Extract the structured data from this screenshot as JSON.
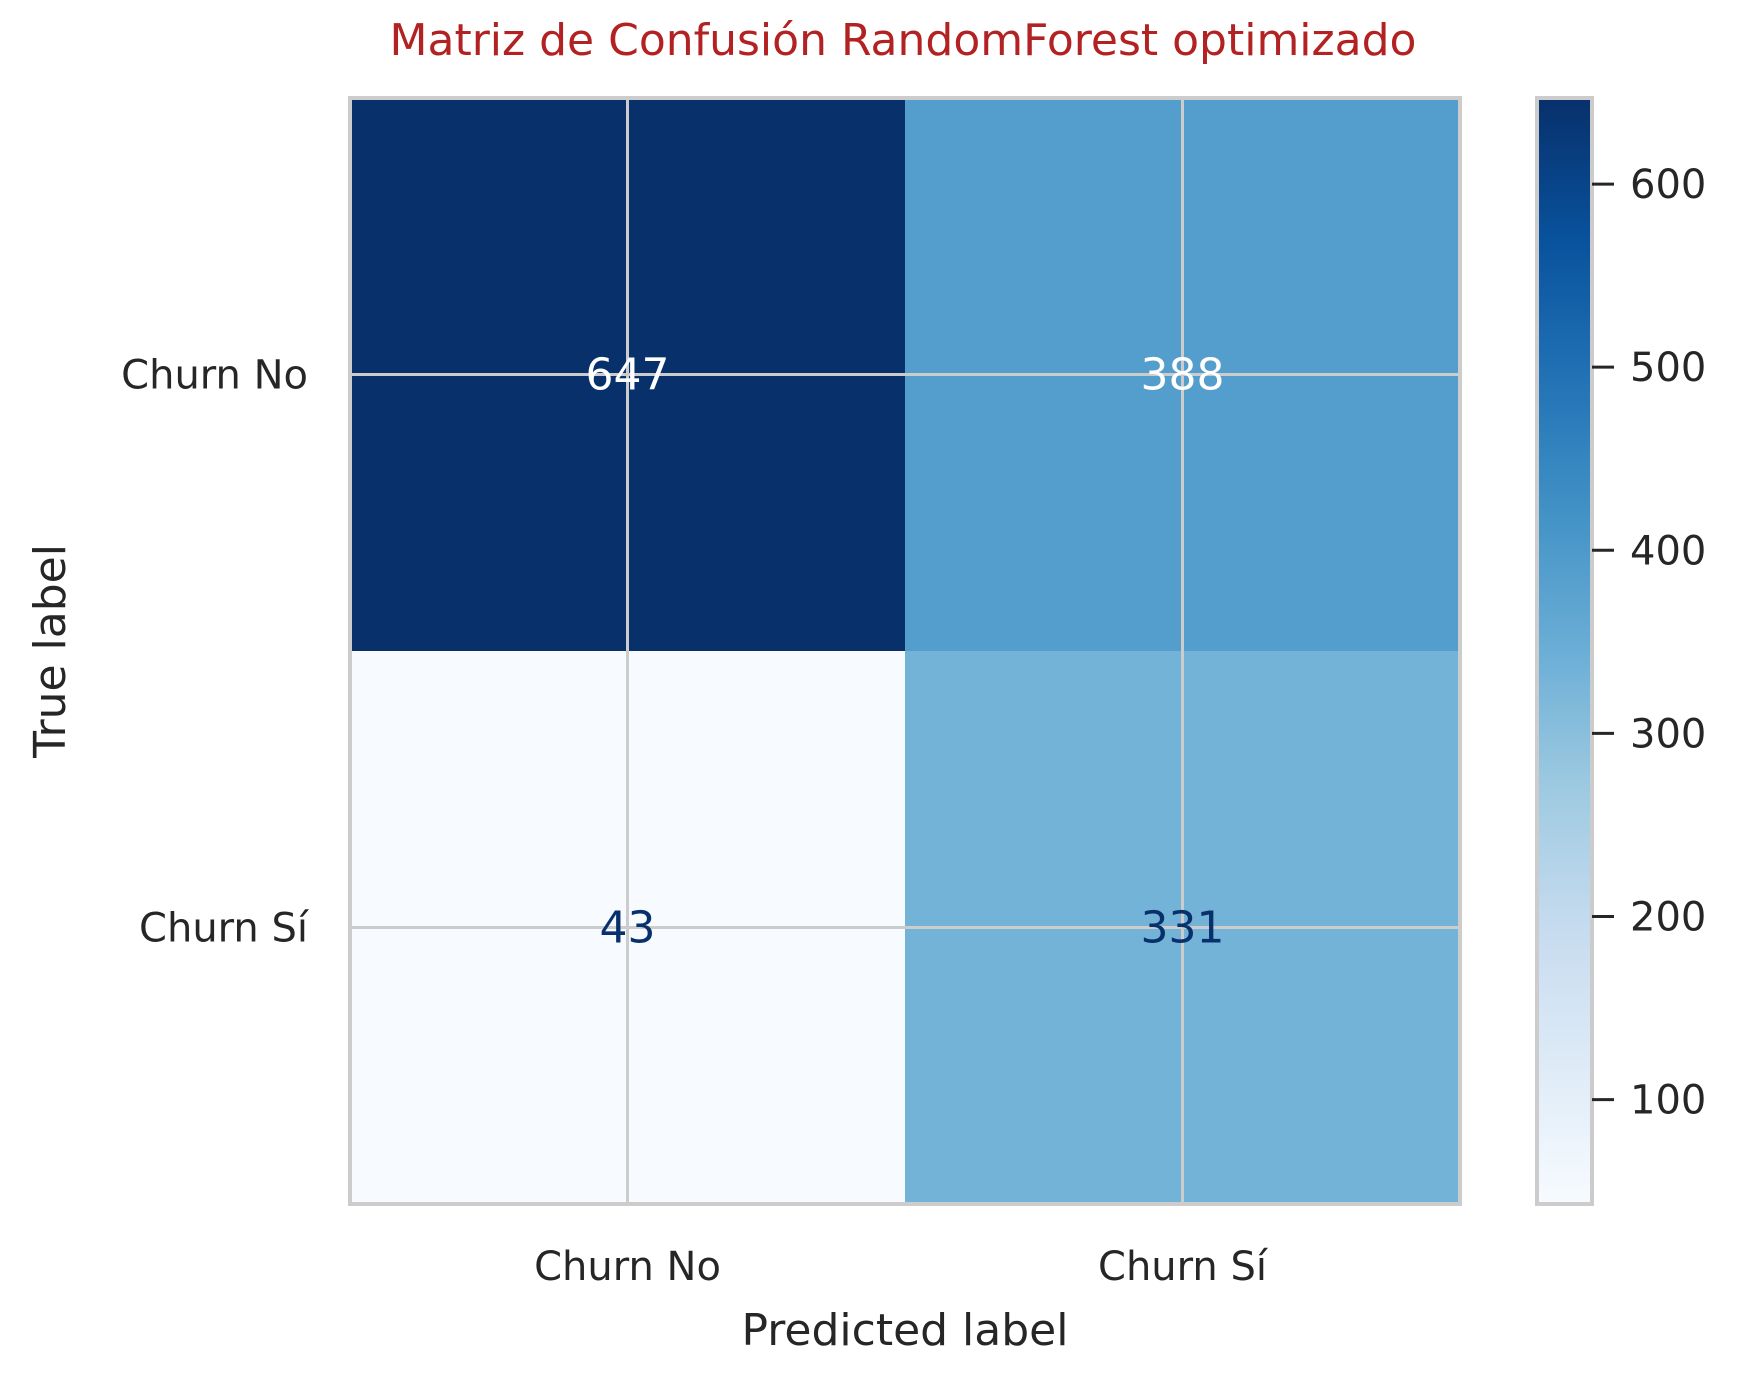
{
  "chart_data": {
    "type": "heatmap",
    "title": "Matriz de Confusión RandomForest optimizado",
    "xlabel": "Predicted label",
    "ylabel": "True label",
    "x_categories": [
      "Churn No",
      "Churn Sí"
    ],
    "y_categories": [
      "Churn No",
      "Churn Sí"
    ],
    "values": [
      [
        647,
        388
      ],
      [
        43,
        331
      ]
    ],
    "colormap": "Blues",
    "colorbar": {
      "range": [
        43,
        647
      ],
      "ticks": [
        100,
        200,
        300,
        400,
        500,
        600
      ]
    },
    "grid": true
  },
  "colors": {
    "title": "#b22222",
    "text_dark": "#08306b",
    "text_light": "#ffffff",
    "grid": "#cccccc",
    "axis_text": "#262626"
  }
}
